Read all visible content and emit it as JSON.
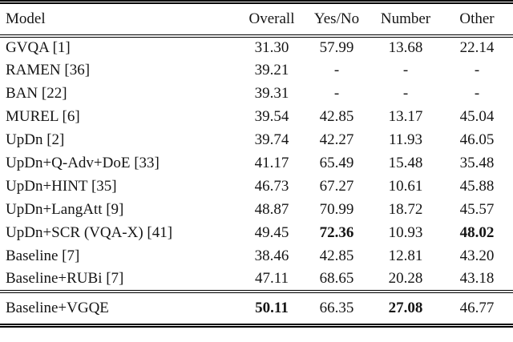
{
  "table": {
    "columns": [
      "Model",
      "Overall",
      "Yes/No",
      "Number",
      "Other"
    ],
    "rows": [
      {
        "model": "GVQA [1]",
        "overall": "31.30",
        "yesno": "57.99",
        "number": "13.68",
        "other": "22.14"
      },
      {
        "model": "RAMEN [36]",
        "overall": "39.21",
        "yesno": "-",
        "number": "-",
        "other": "-"
      },
      {
        "model": "BAN [22]",
        "overall": "39.31",
        "yesno": "-",
        "number": "-",
        "other": "-"
      },
      {
        "model": "MUREL [6]",
        "overall": "39.54",
        "yesno": "42.85",
        "number": "13.17",
        "other": "45.04"
      },
      {
        "model": "UpDn [2]",
        "overall": "39.74",
        "yesno": "42.27",
        "number": "11.93",
        "other": "46.05"
      },
      {
        "model": "UpDn+Q-Adv+DoE [33]",
        "overall": "41.17",
        "yesno": "65.49",
        "number": "15.48",
        "other": "35.48"
      },
      {
        "model": "UpDn+HINT [35]",
        "overall": "46.73",
        "yesno": "67.27",
        "number": "10.61",
        "other": "45.88"
      },
      {
        "model": "UpDn+LangAtt [9]",
        "overall": "48.87",
        "yesno": "70.99",
        "number": "18.72",
        "other": "45.57"
      },
      {
        "model": "UpDn+SCR (VQA-X) [41]",
        "overall": "49.45",
        "yesno": "72.36",
        "number": "10.93",
        "other": "48.02"
      },
      {
        "model": "Baseline [7]",
        "overall": "38.46",
        "yesno": "42.85",
        "number": "12.81",
        "other": "43.20"
      },
      {
        "model": "Baseline+RUBi [7]",
        "overall": "47.11",
        "yesno": "68.65",
        "number": "20.28",
        "other": "43.18"
      }
    ],
    "footer": {
      "model": "Baseline+VGQE",
      "overall": "50.11",
      "yesno": "66.35",
      "number": "27.08",
      "other": "46.77"
    }
  },
  "colors": {
    "text": "#151515",
    "background": "#ffffff",
    "rule": "#000000"
  }
}
